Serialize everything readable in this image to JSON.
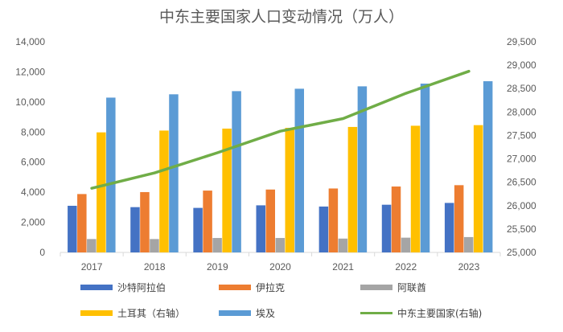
{
  "chart_data": {
    "type": "bar",
    "title": "中东主要国家人口变动情况（万人）",
    "categories": [
      "2017",
      "2018",
      "2019",
      "2020",
      "2021",
      "2022",
      "2023"
    ],
    "ylim": [
      0,
      14000
    ],
    "y2lim": [
      25000,
      29500
    ],
    "yticks": [
      "0",
      "2,000",
      "4,000",
      "6,000",
      "8,000",
      "10,000",
      "12,000",
      "14,000"
    ],
    "y2ticks": [
      "25,000",
      "25,500",
      "26,000",
      "26,500",
      "27,000",
      "27,500",
      "28,000",
      "28,500",
      "29,000",
      "29,500"
    ],
    "grid": false,
    "legend_position": "bottom",
    "series": [
      {
        "name": "沙特阿拉伯",
        "type": "bar",
        "color": "#4472C4",
        "values": [
          3100,
          3010,
          2960,
          3130,
          3050,
          3170,
          3290
        ]
      },
      {
        "name": "伊拉克",
        "type": "bar",
        "color": "#ED7D31",
        "values": [
          3880,
          4010,
          4110,
          4180,
          4250,
          4380,
          4470
        ]
      },
      {
        "name": "阿联酋",
        "type": "bar",
        "color": "#A5A5A5",
        "values": [
          890,
          890,
          960,
          960,
          920,
          980,
          1020
        ]
      },
      {
        "name": "土耳其（右轴）",
        "type": "bar",
        "color": "#FFC000",
        "values": [
          7980,
          8100,
          8230,
          8280,
          8340,
          8420,
          8460
        ]
      },
      {
        "name": "埃及",
        "type": "bar",
        "color": "#5B9BD5",
        "values": [
          10290,
          10510,
          10720,
          10880,
          11040,
          11220,
          11380
        ]
      },
      {
        "name": "中东主要国家(右轴)",
        "type": "line",
        "axis": "right",
        "color": "#70AD47",
        "values": [
          26370,
          26700,
          27130,
          27590,
          27860,
          28400,
          28870
        ]
      }
    ]
  }
}
